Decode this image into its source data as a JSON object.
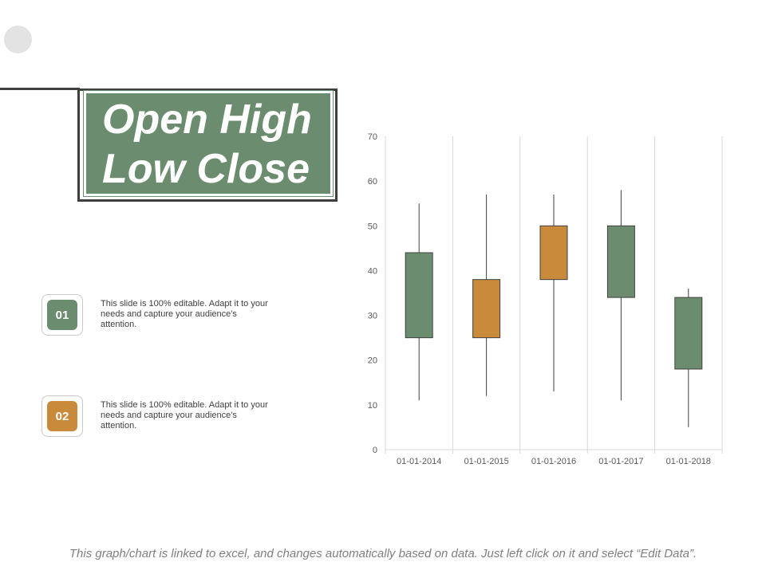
{
  "slide": {
    "title": "Open High\nLow Close",
    "items": [
      {
        "number": "01",
        "text": "This slide is 100% editable. Adapt it to your needs and capture your audience's attention."
      },
      {
        "number": "02",
        "text": "This slide is 100% editable. Adapt it to your needs and capture your audience's attention."
      }
    ],
    "footer": "This graph/chart is linked to excel, and changes automatically based on data.  Just left click on it and select “Edit Data”."
  },
  "colors": {
    "green": "#6b8c6f",
    "orange": "#c98a3b",
    "grid": "#d9d9d9",
    "dark_line": "#3f3f3f"
  },
  "chart_data": {
    "type": "candlestick",
    "title": "",
    "xlabel": "",
    "ylabel": "",
    "ylim": [
      0,
      70
    ],
    "yticks": [
      0,
      10,
      20,
      30,
      40,
      50,
      60,
      70
    ],
    "grid": "vertical",
    "categories": [
      "01-01-2014",
      "01-01-2015",
      "01-01-2016",
      "01-01-2017",
      "01-01-2018"
    ],
    "open": [
      44,
      25,
      38,
      50,
      34
    ],
    "high": [
      55,
      57,
      57,
      58,
      36
    ],
    "low": [
      11,
      12,
      13,
      11,
      5
    ],
    "close": [
      25,
      38,
      50,
      34,
      18
    ],
    "up_color": "#c98a3b",
    "down_color": "#6b8c6f"
  }
}
